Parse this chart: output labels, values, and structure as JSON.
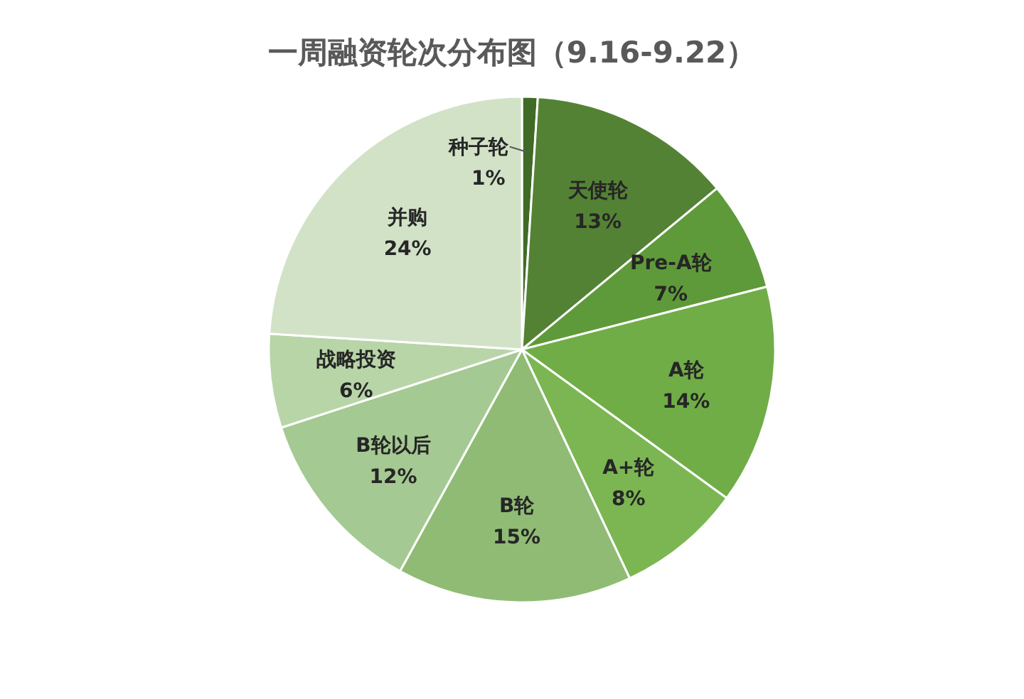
{
  "chart_data": {
    "type": "pie",
    "title": "一周融资轮次分布图（9.16-9.22）",
    "categories": [
      "种子轮",
      "天使轮",
      "Pre-A轮",
      "A轮",
      "A+轮",
      "B轮",
      "B轮以后",
      "战略投资",
      "并购"
    ],
    "values": [
      1,
      13,
      7,
      14,
      8,
      15,
      12,
      6,
      24
    ],
    "value_labels": [
      "1%",
      "13%",
      "7%",
      "14%",
      "8%",
      "15%",
      "12%",
      "6%",
      "24%"
    ],
    "colors": [
      "#3f6b26",
      "#548235",
      "#5f9a3a",
      "#70ad47",
      "#7bb652",
      "#90bb75",
      "#a5c992",
      "#b8d5a8",
      "#d2e2c7"
    ]
  }
}
